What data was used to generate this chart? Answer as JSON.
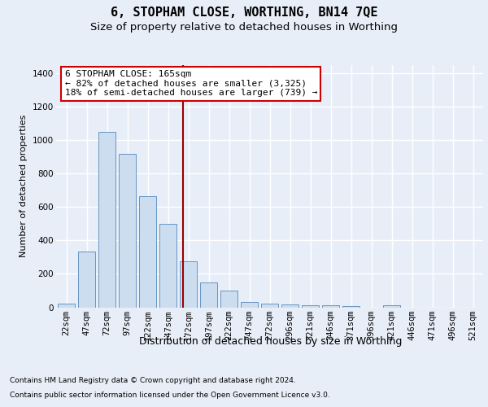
{
  "title": "6, STOPHAM CLOSE, WORTHING, BN14 7QE",
  "subtitle": "Size of property relative to detached houses in Worthing",
  "xlabel": "Distribution of detached houses by size in Worthing",
  "ylabel": "Number of detached properties",
  "categories": [
    "22sqm",
    "47sqm",
    "72sqm",
    "97sqm",
    "122sqm",
    "147sqm",
    "172sqm",
    "197sqm",
    "222sqm",
    "247sqm",
    "272sqm",
    "296sqm",
    "321sqm",
    "346sqm",
    "371sqm",
    "396sqm",
    "421sqm",
    "446sqm",
    "471sqm",
    "496sqm",
    "521sqm"
  ],
  "values": [
    20,
    335,
    1050,
    920,
    665,
    500,
    275,
    150,
    100,
    32,
    20,
    15,
    12,
    10,
    7,
    0,
    12,
    0,
    0,
    0,
    0
  ],
  "bar_color": "#ccddf0",
  "bar_edge_color": "#5588bb",
  "vline_color": "#990000",
  "annotation_title": "6 STOPHAM CLOSE: 165sqm",
  "annotation_line1": "← 82% of detached houses are smaller (3,325)",
  "annotation_line2": "18% of semi-detached houses are larger (739) →",
  "annotation_box_facecolor": "#ffffff",
  "annotation_box_edgecolor": "#cc0000",
  "ylim": [
    0,
    1450
  ],
  "yticks": [
    0,
    200,
    400,
    600,
    800,
    1000,
    1200,
    1400
  ],
  "bg_color": "#e8eef8",
  "plot_bg_color": "#e8eef8",
  "grid_color": "#ffffff",
  "footer_line1": "Contains HM Land Registry data © Crown copyright and database right 2024.",
  "footer_line2": "Contains public sector information licensed under the Open Government Licence v3.0.",
  "title_fontsize": 11,
  "subtitle_fontsize": 9.5,
  "ylabel_fontsize": 8,
  "xlabel_fontsize": 9,
  "tick_fontsize": 7.5,
  "footer_fontsize": 6.5,
  "annotation_fontsize": 8
}
